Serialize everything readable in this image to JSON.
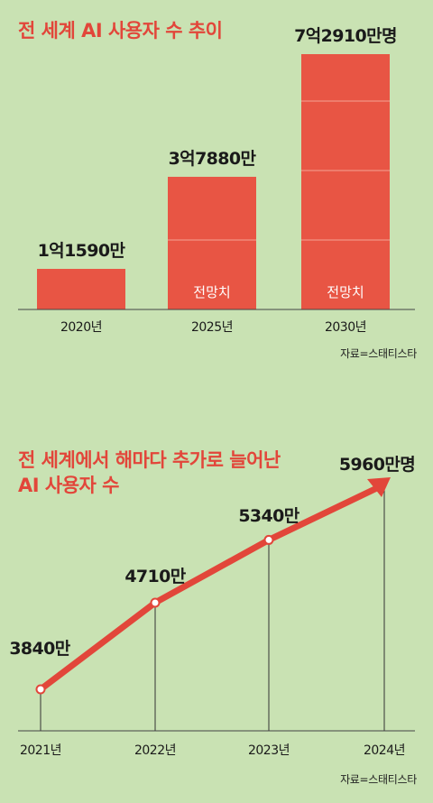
{
  "colors": {
    "background": "#c9e2b3",
    "accent": "#e2463a",
    "bar": "#e85544"
  },
  "chart_data": [
    {
      "type": "bar",
      "title": "전 세계 AI 사용자 수 추이",
      "source": "자료=스태티스타",
      "categories": [
        "2020년",
        "2025년",
        "2030년"
      ],
      "values": [
        11590,
        37880,
        72910
      ],
      "value_labels": [
        "1억1590만",
        "3억7880만",
        "7억2910만명"
      ],
      "forecast_label": "전망치",
      "forecast": [
        false,
        true,
        true
      ],
      "ylim": [
        0,
        75000
      ]
    },
    {
      "type": "line",
      "title": [
        "전 세계에서 해마다 추가로 늘어난",
        "AI 사용자 수"
      ],
      "source": "자료=스태티스타",
      "x": [
        "2021년",
        "2022년",
        "2023년",
        "2024년"
      ],
      "values": [
        3840,
        4710,
        5340,
        5960
      ],
      "value_labels": [
        "3840만",
        "4710만",
        "5340만",
        "5960만명"
      ],
      "ylim": [
        3400,
        6100
      ]
    }
  ]
}
